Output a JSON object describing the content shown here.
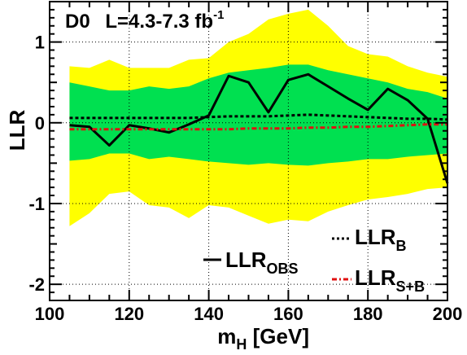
{
  "chart_data": {
    "type": "line",
    "experiment": "D0",
    "lumi_prefix": "L=4.3-7.3 fb",
    "lumi_superscript": "-1",
    "xlabel_main": "m",
    "xlabel_sub": "H",
    "xlabel_unit": " [GeV]",
    "ylabel": "LLR",
    "xlim": [
      100,
      200
    ],
    "ylim": [
      -2.2,
      1.5
    ],
    "x_ticks": [
      100,
      120,
      140,
      160,
      180,
      200
    ],
    "y_ticks": [
      -2,
      -1,
      0,
      1
    ],
    "grid": true,
    "legend": [
      {
        "main": "LLR",
        "sub": "OBS",
        "style": "solid",
        "color": "#000000"
      },
      {
        "main": "LLR",
        "sub": "B",
        "style": "dashed",
        "color": "#000000"
      },
      {
        "main": "LLR",
        "sub": "S+B",
        "style": "dashdot",
        "color": "#e01010"
      }
    ],
    "x": [
      105,
      110,
      115,
      120,
      125,
      130,
      135,
      140,
      145,
      150,
      155,
      160,
      165,
      170,
      175,
      180,
      185,
      190,
      195,
      200
    ],
    "series": [
      {
        "name": "LLR_OBS",
        "color": "#000000",
        "style": "solid",
        "values": [
          -0.03,
          -0.05,
          -0.28,
          -0.03,
          -0.07,
          -0.12,
          -0.02,
          0.09,
          0.58,
          0.5,
          0.13,
          0.53,
          0.6,
          0.45,
          0.3,
          0.16,
          0.42,
          0.28,
          0.05,
          -0.75
        ]
      },
      {
        "name": "LLR_B",
        "color": "#000000",
        "style": "dashed",
        "values": [
          0.06,
          0.06,
          0.06,
          0.06,
          0.06,
          0.06,
          0.06,
          0.07,
          0.08,
          0.08,
          0.08,
          0.09,
          0.1,
          0.09,
          0.08,
          0.07,
          0.06,
          0.05,
          0.05,
          0.04
        ]
      },
      {
        "name": "LLR_S+B",
        "color": "#e01010",
        "style": "dashdot",
        "values": [
          -0.08,
          -0.08,
          -0.08,
          -0.08,
          -0.08,
          -0.08,
          -0.08,
          -0.08,
          -0.08,
          -0.07,
          -0.07,
          -0.07,
          -0.06,
          -0.06,
          -0.05,
          -0.05,
          -0.04,
          -0.03,
          -0.02,
          -0.02
        ]
      }
    ],
    "band_2sigma": {
      "color": "#ffff00",
      "upper": [
        0.7,
        0.68,
        0.78,
        0.68,
        0.68,
        0.68,
        0.78,
        0.8,
        1.0,
        1.1,
        1.28,
        1.35,
        1.4,
        1.2,
        0.95,
        0.85,
        0.82,
        0.7,
        0.62,
        0.57
      ],
      "lower": [
        -1.28,
        -1.12,
        -0.88,
        -0.85,
        -1.02,
        -1.05,
        -1.18,
        -1.02,
        -1.05,
        -1.15,
        -1.25,
        -1.2,
        -1.22,
        -1.1,
        -1.02,
        -0.95,
        -0.92,
        -0.88,
        -0.82,
        -0.8
      ]
    },
    "band_1sigma": {
      "color": "#00e050",
      "upper": [
        0.5,
        0.45,
        0.4,
        0.4,
        0.45,
        0.42,
        0.45,
        0.55,
        0.62,
        0.65,
        0.68,
        0.72,
        0.72,
        0.65,
        0.6,
        0.55,
        0.5,
        0.42,
        0.38,
        0.3
      ],
      "lower": [
        -0.47,
        -0.45,
        -0.38,
        -0.38,
        -0.45,
        -0.42,
        -0.45,
        -0.48,
        -0.5,
        -0.52,
        -0.5,
        -0.52,
        -0.53,
        -0.5,
        -0.48,
        -0.45,
        -0.45,
        -0.42,
        -0.4,
        -0.38
      ]
    }
  }
}
